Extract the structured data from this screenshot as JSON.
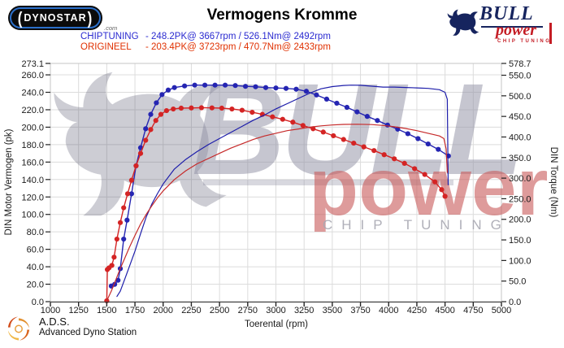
{
  "header": {
    "brand": {
      "name": "DYNOSTAR",
      "suffix": ".com"
    },
    "title": "Vermogens Kromme",
    "bull_logo": {
      "line1": "BULL",
      "line2": "power",
      "line3": "CHIP TUNING"
    }
  },
  "legend": [
    {
      "name": "CHIPTUNING",
      "value": "- 248.2PK@ 3667rpm / 526.1Nm@ 2492rpm",
      "color": "#2a2ad0"
    },
    {
      "name": "ORIGINEEL",
      "value": "- 203.4PK@ 3723rpm / 470.7Nm@ 2433rpm",
      "color": "#e03000"
    }
  ],
  "watermark": {
    "bull_text": "BULL",
    "power_text": "power",
    "chip_text": "CHIP TUNING"
  },
  "footer": {
    "name": "A.D.S.",
    "subtitle": "Advanced Dyno Station"
  },
  "colors": {
    "chiptuning": "#2222b0",
    "origineel": "#cf2222",
    "grid": "#dcdcdc",
    "plot_border": "#c4c4c4",
    "axis_line": "#333333",
    "tick_text": "#1a1a1a",
    "watermark_gray": "#8f8fa3",
    "watermark_red": "#c95a5a",
    "brand_navy": "#16245e",
    "brand_red": "#c41c24",
    "dynostar_blue": "#2b6fc9"
  },
  "chart_data": {
    "type": "line",
    "title": "Vermogens Kromme",
    "xlabel": "Toerental (rpm)",
    "ylabel_left": "DIN Motor Vermogen (pk)",
    "ylabel_right": "DIN Torque (Nm)",
    "xlim": [
      1000,
      5000
    ],
    "ylim_left": [
      0,
      273.1
    ],
    "ylim_right": [
      0,
      578.7
    ],
    "grid": true,
    "x_ticks": [
      1000,
      1250,
      1500,
      1750,
      2000,
      2250,
      2500,
      2750,
      3000,
      3250,
      3500,
      3750,
      4000,
      4250,
      4500,
      4750,
      5000
    ],
    "left_ticks": [
      273.1,
      260,
      240,
      220,
      200,
      180,
      160,
      140,
      120,
      100,
      80,
      60,
      40,
      20,
      0
    ],
    "right_ticks": [
      578.7,
      550,
      500,
      450,
      400,
      350,
      300,
      250,
      200,
      150,
      100,
      50,
      0
    ],
    "peaks": {
      "chiptuning": {
        "power_pk": 248.2,
        "power_rpm": 3667,
        "torque_nm": 526.1,
        "torque_rpm": 2492
      },
      "origineel": {
        "power_pk": 203.4,
        "power_rpm": 3723,
        "torque_nm": 470.7,
        "torque_rpm": 2433
      }
    },
    "series": [
      {
        "name": "chiptuning_torque_nm",
        "axis": "right",
        "color": "#2525b2",
        "markers": true,
        "width": 1.4,
        "points": [
          [
            1540,
            38
          ],
          [
            1570,
            42
          ],
          [
            1600,
            52
          ],
          [
            1620,
            80
          ],
          [
            1650,
            152
          ],
          [
            1680,
            198
          ],
          [
            1720,
            262
          ],
          [
            1760,
            330
          ],
          [
            1800,
            374
          ],
          [
            1845,
            420
          ],
          [
            1890,
            455
          ],
          [
            1940,
            483
          ],
          [
            1990,
            503
          ],
          [
            2045,
            514
          ],
          [
            2100,
            520
          ],
          [
            2190,
            524
          ],
          [
            2280,
            526
          ],
          [
            2370,
            526
          ],
          [
            2460,
            526
          ],
          [
            2550,
            526
          ],
          [
            2640,
            525
          ],
          [
            2730,
            523
          ],
          [
            2820,
            522
          ],
          [
            2910,
            520
          ],
          [
            3000,
            519
          ],
          [
            3090,
            518
          ],
          [
            3180,
            516
          ],
          [
            3270,
            511
          ],
          [
            3360,
            502
          ],
          [
            3450,
            492
          ],
          [
            3540,
            482
          ],
          [
            3630,
            472
          ],
          [
            3720,
            461
          ],
          [
            3810,
            450
          ],
          [
            3900,
            440
          ],
          [
            3990,
            429
          ],
          [
            4080,
            419
          ],
          [
            4170,
            408
          ],
          [
            4260,
            396
          ],
          [
            4350,
            383
          ],
          [
            4440,
            370
          ],
          [
            4530,
            354
          ]
        ]
      },
      {
        "name": "origineel_torque_nm",
        "axis": "right",
        "color": "#d42424",
        "markers": true,
        "width": 1.4,
        "points": [
          [
            1500,
            2
          ],
          [
            1505,
            78
          ],
          [
            1520,
            82
          ],
          [
            1545,
            88
          ],
          [
            1565,
            108
          ],
          [
            1590,
            152
          ],
          [
            1620,
            192
          ],
          [
            1650,
            228
          ],
          [
            1685,
            262
          ],
          [
            1720,
            295
          ],
          [
            1760,
            330
          ],
          [
            1800,
            360
          ],
          [
            1845,
            392
          ],
          [
            1890,
            418
          ],
          [
            1935,
            440
          ],
          [
            1980,
            455
          ],
          [
            2030,
            464
          ],
          [
            2090,
            468
          ],
          [
            2160,
            470
          ],
          [
            2250,
            470.5
          ],
          [
            2340,
            471
          ],
          [
            2433,
            470.7
          ],
          [
            2520,
            470
          ],
          [
            2610,
            468
          ],
          [
            2700,
            465
          ],
          [
            2790,
            460
          ],
          [
            2880,
            455
          ],
          [
            2970,
            449
          ],
          [
            3060,
            443
          ],
          [
            3150,
            436
          ],
          [
            3240,
            428
          ],
          [
            3330,
            420
          ],
          [
            3420,
            412
          ],
          [
            3510,
            403
          ],
          [
            3600,
            394
          ],
          [
            3690,
            385
          ],
          [
            3780,
            376
          ],
          [
            3870,
            367
          ],
          [
            3960,
            357
          ],
          [
            4050,
            347
          ],
          [
            4140,
            336
          ],
          [
            4230,
            323
          ],
          [
            4320,
            309
          ],
          [
            4410,
            291
          ],
          [
            4470,
            272
          ],
          [
            4500,
            256
          ]
        ]
      },
      {
        "name": "chiptuning_power_pk",
        "axis": "left",
        "color": "#1d1daa",
        "markers": false,
        "width": 1.2,
        "points": [
          [
            1590,
            6
          ],
          [
            1620,
            12
          ],
          [
            1660,
            26
          ],
          [
            1700,
            40
          ],
          [
            1750,
            58
          ],
          [
            1800,
            78
          ],
          [
            1850,
            97
          ],
          [
            1900,
            112
          ],
          [
            1950,
            124
          ],
          [
            2000,
            135
          ],
          [
            2100,
            152
          ],
          [
            2200,
            163
          ],
          [
            2300,
            172
          ],
          [
            2400,
            180
          ],
          [
            2500,
            187
          ],
          [
            2600,
            194
          ],
          [
            2700,
            201
          ],
          [
            2800,
            208
          ],
          [
            2900,
            214
          ],
          [
            3000,
            221
          ],
          [
            3100,
            227
          ],
          [
            3200,
            233
          ],
          [
            3300,
            239
          ],
          [
            3400,
            244
          ],
          [
            3500,
            246.5
          ],
          [
            3600,
            247.8
          ],
          [
            3667,
            248.2
          ],
          [
            3750,
            248
          ],
          [
            3850,
            247
          ],
          [
            3950,
            246
          ],
          [
            4050,
            246
          ],
          [
            4150,
            245.5
          ],
          [
            4250,
            245
          ],
          [
            4350,
            244.5
          ],
          [
            4450,
            243
          ],
          [
            4500,
            240
          ],
          [
            4520,
            232
          ],
          [
            4528,
            134
          ]
        ]
      },
      {
        "name": "origineel_power_pk",
        "axis": "left",
        "color": "#c62a2a",
        "markers": false,
        "width": 1.2,
        "points": [
          [
            1500,
            1
          ],
          [
            1540,
            12
          ],
          [
            1580,
            25
          ],
          [
            1620,
            38
          ],
          [
            1660,
            50
          ],
          [
            1700,
            62
          ],
          [
            1750,
            76
          ],
          [
            1800,
            89
          ],
          [
            1850,
            100
          ],
          [
            1900,
            110
          ],
          [
            1950,
            119
          ],
          [
            2000,
            127
          ],
          [
            2100,
            140
          ],
          [
            2200,
            150
          ],
          [
            2300,
            158
          ],
          [
            2400,
            164
          ],
          [
            2500,
            170
          ],
          [
            2600,
            176
          ],
          [
            2700,
            181
          ],
          [
            2800,
            186
          ],
          [
            2900,
            190
          ],
          [
            3000,
            193
          ],
          [
            3100,
            196
          ],
          [
            3200,
            198
          ],
          [
            3300,
            200
          ],
          [
            3400,
            201.5
          ],
          [
            3500,
            202.5
          ],
          [
            3600,
            203.2
          ],
          [
            3723,
            203.4
          ],
          [
            3850,
            203
          ],
          [
            3950,
            202
          ],
          [
            4050,
            200.5
          ],
          [
            4150,
            198.5
          ],
          [
            4250,
            196
          ],
          [
            4350,
            193
          ],
          [
            4450,
            190
          ],
          [
            4490,
            187
          ],
          [
            4510,
            175
          ],
          [
            4520,
            148
          ]
        ]
      }
    ]
  }
}
